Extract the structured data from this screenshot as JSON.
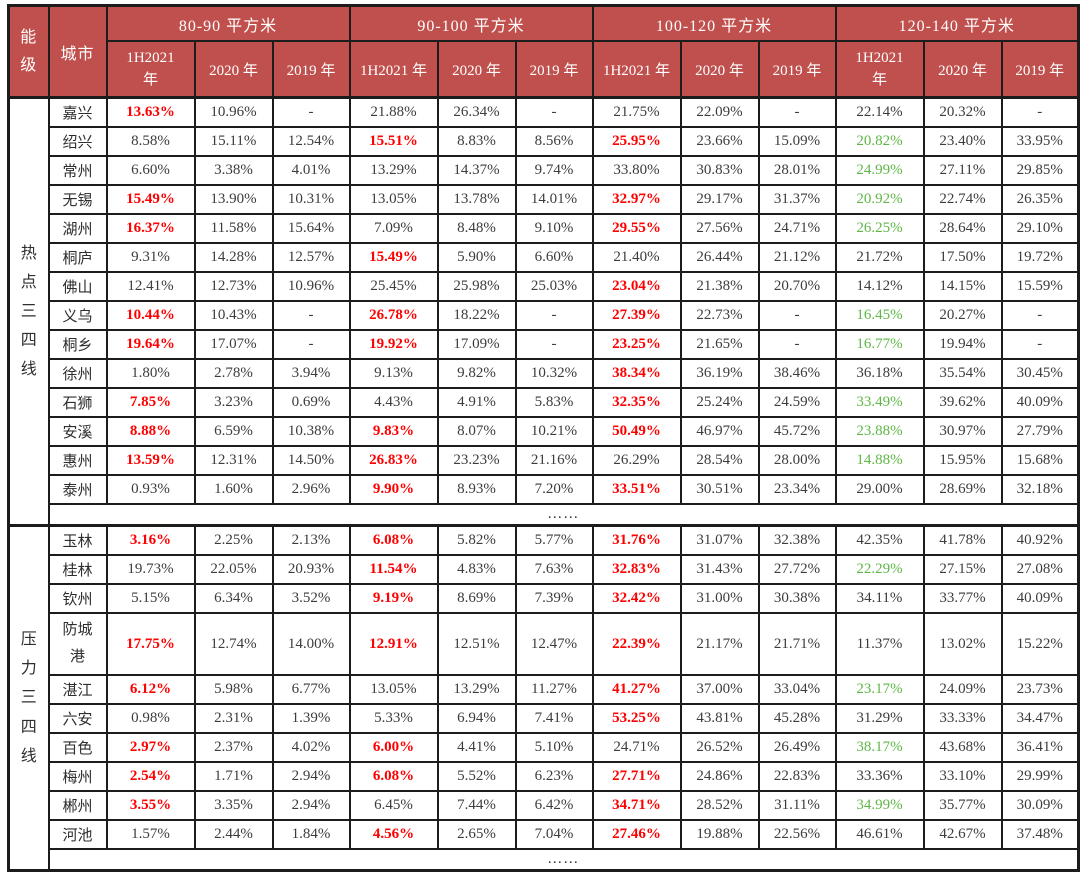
{
  "table": {
    "colors": {
      "header_bg": "#C0504D",
      "header_text": "#FFFFFF",
      "highlight_red": "#FE0000",
      "highlight_green": "#5FB646",
      "border": "#1C1C1C"
    },
    "header": {
      "tier": "能级",
      "city": "城市",
      "groups": [
        {
          "label": "80-90 平方米",
          "years": [
            "1H2021 年",
            "2020 年",
            "2019 年"
          ]
        },
        {
          "label": "90-100 平方米",
          "years": [
            "1H2021 年",
            "2020 年",
            "2019 年"
          ]
        },
        {
          "label": "100-120 平方米",
          "years": [
            "1H2021 年",
            "2020 年",
            "2019 年"
          ]
        },
        {
          "label": "120-140 平方米",
          "years": [
            "1H2021 年",
            "2020 年",
            "2019 年"
          ]
        }
      ]
    },
    "tiers": [
      {
        "name": "热点三四线",
        "rows": [
          {
            "city": "嘉兴",
            "cells": [
              "13.63%|r",
              "10.96%",
              "-",
              "21.88%",
              "26.34%",
              "-",
              "21.75%",
              "22.09%",
              "-",
              "22.14%",
              "20.32%",
              "-"
            ]
          },
          {
            "city": "绍兴",
            "cells": [
              "8.58%",
              "15.11%",
              "12.54%",
              "15.51%|r",
              "8.83%",
              "8.56%",
              "25.95%|r",
              "23.66%",
              "15.09%",
              "20.82%|g",
              "23.40%",
              "33.95%"
            ]
          },
          {
            "city": "常州",
            "cells": [
              "6.60%",
              "3.38%",
              "4.01%",
              "13.29%",
              "14.37%",
              "9.74%",
              "33.80%",
              "30.83%",
              "28.01%",
              "24.99%|g",
              "27.11%",
              "29.85%"
            ]
          },
          {
            "city": "无锡",
            "cells": [
              "15.49%|r",
              "13.90%",
              "10.31%",
              "13.05%",
              "13.78%",
              "14.01%",
              "32.97%|r",
              "29.17%",
              "31.37%",
              "20.92%|g",
              "22.74%",
              "26.35%"
            ]
          },
          {
            "city": "湖州",
            "cells": [
              "16.37%|r",
              "11.58%",
              "15.64%",
              "7.09%",
              "8.48%",
              "9.10%",
              "29.55%|r",
              "27.56%",
              "24.71%",
              "26.25%|g",
              "28.64%",
              "29.10%"
            ]
          },
          {
            "city": "桐庐",
            "cells": [
              "9.31%",
              "14.28%",
              "12.57%",
              "15.49%|r",
              "5.90%",
              "6.60%",
              "21.40%",
              "26.44%",
              "21.12%",
              "21.72%",
              "17.50%",
              "19.72%"
            ]
          },
          {
            "city": "佛山",
            "cells": [
              "12.41%",
              "12.73%",
              "10.96%",
              "25.45%",
              "25.98%",
              "25.03%",
              "23.04%|r",
              "21.38%",
              "20.70%",
              "14.12%",
              "14.15%",
              "15.59%"
            ]
          },
          {
            "city": "义乌",
            "cells": [
              "10.44%|r",
              "10.43%",
              "-",
              "26.78%|r",
              "18.22%",
              "-",
              "27.39%|r",
              "22.73%",
              "-",
              "16.45%|g",
              "20.27%",
              "-"
            ]
          },
          {
            "city": "桐乡",
            "cells": [
              "19.64%|r",
              "17.07%",
              "-",
              "19.92%|r",
              "17.09%",
              "-",
              "23.25%|r",
              "21.65%",
              "-",
              "16.77%|g",
              "19.94%",
              "-"
            ]
          },
          {
            "city": "徐州",
            "cells": [
              "1.80%",
              "2.78%",
              "3.94%",
              "9.13%",
              "9.82%",
              "10.32%",
              "38.34%|r",
              "36.19%",
              "38.46%",
              "36.18%",
              "35.54%",
              "30.45%"
            ]
          },
          {
            "city": "石狮",
            "cells": [
              "7.85%|r",
              "3.23%",
              "0.69%",
              "4.43%",
              "4.91%",
              "5.83%",
              "32.35%|r",
              "25.24%",
              "24.59%",
              "33.49%|g",
              "39.62%",
              "40.09%"
            ]
          },
          {
            "city": "安溪",
            "cells": [
              "8.88%|r",
              "6.59%",
              "10.38%",
              "9.83%|r",
              "8.07%",
              "10.21%",
              "50.49%|r",
              "46.97%",
              "45.72%",
              "23.88%|g",
              "30.97%",
              "27.79%"
            ]
          },
          {
            "city": "惠州",
            "cells": [
              "13.59%|r",
              "12.31%",
              "14.50%",
              "26.83%|r",
              "23.23%",
              "21.16%",
              "26.29%",
              "28.54%",
              "28.00%",
              "14.88%|g",
              "15.95%",
              "15.68%"
            ]
          },
          {
            "city": "泰州",
            "cells": [
              "0.93%",
              "1.60%",
              "2.96%",
              "9.90%|r",
              "8.93%",
              "7.20%",
              "33.51%|r",
              "30.51%",
              "23.34%",
              "29.00%",
              "28.69%",
              "32.18%"
            ]
          },
          {
            "ellipsis": "……"
          }
        ]
      },
      {
        "name": "压力三四线",
        "rows": [
          {
            "city": "玉林",
            "cells": [
              "3.16%|r",
              "2.25%",
              "2.13%",
              "6.08%|r",
              "5.82%",
              "5.77%",
              "31.76%|r",
              "31.07%",
              "32.38%",
              "42.35%",
              "41.78%",
              "40.92%"
            ]
          },
          {
            "city": "桂林",
            "cells": [
              "19.73%",
              "22.05%",
              "20.93%",
              "11.54%|r",
              "4.83%",
              "7.63%",
              "32.83%|r",
              "31.43%",
              "27.72%",
              "22.29%|g",
              "27.15%",
              "27.08%"
            ]
          },
          {
            "city": "钦州",
            "cells": [
              "5.15%",
              "6.34%",
              "3.52%",
              "9.19%|r",
              "8.69%",
              "7.39%",
              "32.42%|r",
              "31.00%",
              "30.38%",
              "34.11%",
              "33.77%",
              "40.09%"
            ]
          },
          {
            "city": "防城港",
            "tall": true,
            "cells": [
              "17.75%|r",
              "12.74%",
              "14.00%",
              "12.91%|r",
              "12.51%",
              "12.47%",
              "22.39%|r",
              "21.17%",
              "21.71%",
              "11.37%",
              "13.02%",
              "15.22%"
            ]
          },
          {
            "city": "湛江",
            "cells": [
              "6.12%|r",
              "5.98%",
              "6.77%",
              "13.05%",
              "13.29%",
              "11.27%",
              "41.27%|r",
              "37.00%",
              "33.04%",
              "23.17%|g",
              "24.09%",
              "23.73%"
            ]
          },
          {
            "city": "六安",
            "cells": [
              "0.98%",
              "2.31%",
              "1.39%",
              "5.33%",
              "6.94%",
              "7.41%",
              "53.25%|r",
              "43.81%",
              "45.28%",
              "31.29%",
              "33.33%",
              "34.47%"
            ]
          },
          {
            "city": "百色",
            "cells": [
              "2.97%|r",
              "2.37%",
              "4.02%",
              "6.00%|r",
              "4.41%",
              "5.10%",
              "24.71%",
              "26.52%",
              "26.49%",
              "38.17%|g",
              "43.68%",
              "36.41%"
            ]
          },
          {
            "city": "梅州",
            "cells": [
              "2.54%|r",
              "1.71%",
              "2.94%",
              "6.08%|r",
              "5.52%",
              "6.23%",
              "27.71%|r",
              "24.86%",
              "22.83%",
              "33.36%",
              "33.10%",
              "29.99%"
            ]
          },
          {
            "city": "郴州",
            "cells": [
              "3.55%|r",
              "3.35%",
              "2.94%",
              "6.45%",
              "7.44%",
              "6.42%",
              "34.71%|r",
              "28.52%",
              "31.11%",
              "34.99%|g",
              "35.77%",
              "30.09%"
            ]
          },
          {
            "city": "河池",
            "cells": [
              "1.57%",
              "2.44%",
              "1.84%",
              "4.56%|r",
              "2.65%",
              "7.04%",
              "27.46%|r",
              "19.88%",
              "22.56%",
              "46.61%",
              "42.67%",
              "37.48%"
            ]
          },
          {
            "ellipsis": "……"
          }
        ]
      }
    ]
  }
}
